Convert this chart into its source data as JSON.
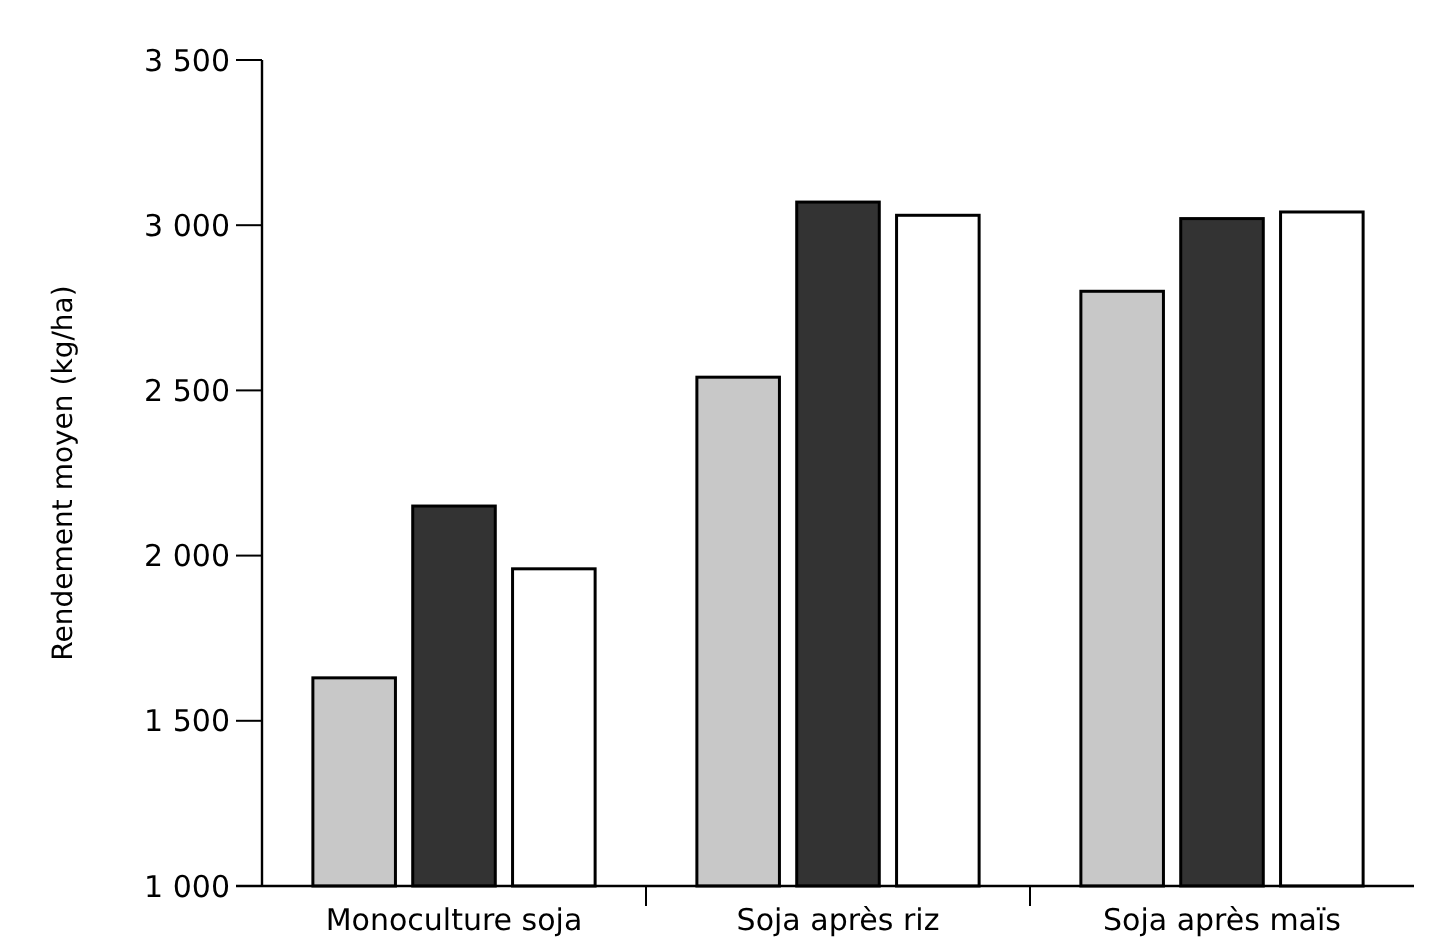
{
  "chart_data": {
    "type": "bar",
    "ylabel": "Rendement moyen (kg/ha)",
    "categories": [
      "Monoculture soja",
      "Soja après riz",
      "Soja après maïs"
    ],
    "series": [
      {
        "color": "#c8c8c8",
        "values": [
          1630,
          2540,
          2800
        ]
      },
      {
        "color": "#333333",
        "values": [
          2150,
          3070,
          3020
        ]
      },
      {
        "color": "#ffffff",
        "values": [
          1960,
          3030,
          3040
        ]
      }
    ],
    "ylim": [
      1000,
      3500
    ],
    "yticks": [
      {
        "value": 1000,
        "label": "1 000"
      },
      {
        "value": 1500,
        "label": "1 500"
      },
      {
        "value": 2000,
        "label": "2 000"
      },
      {
        "value": 2500,
        "label": "2 500"
      },
      {
        "value": 3000,
        "label": "3 000"
      },
      {
        "value": 3500,
        "label": "3 500"
      }
    ],
    "grid": false
  }
}
